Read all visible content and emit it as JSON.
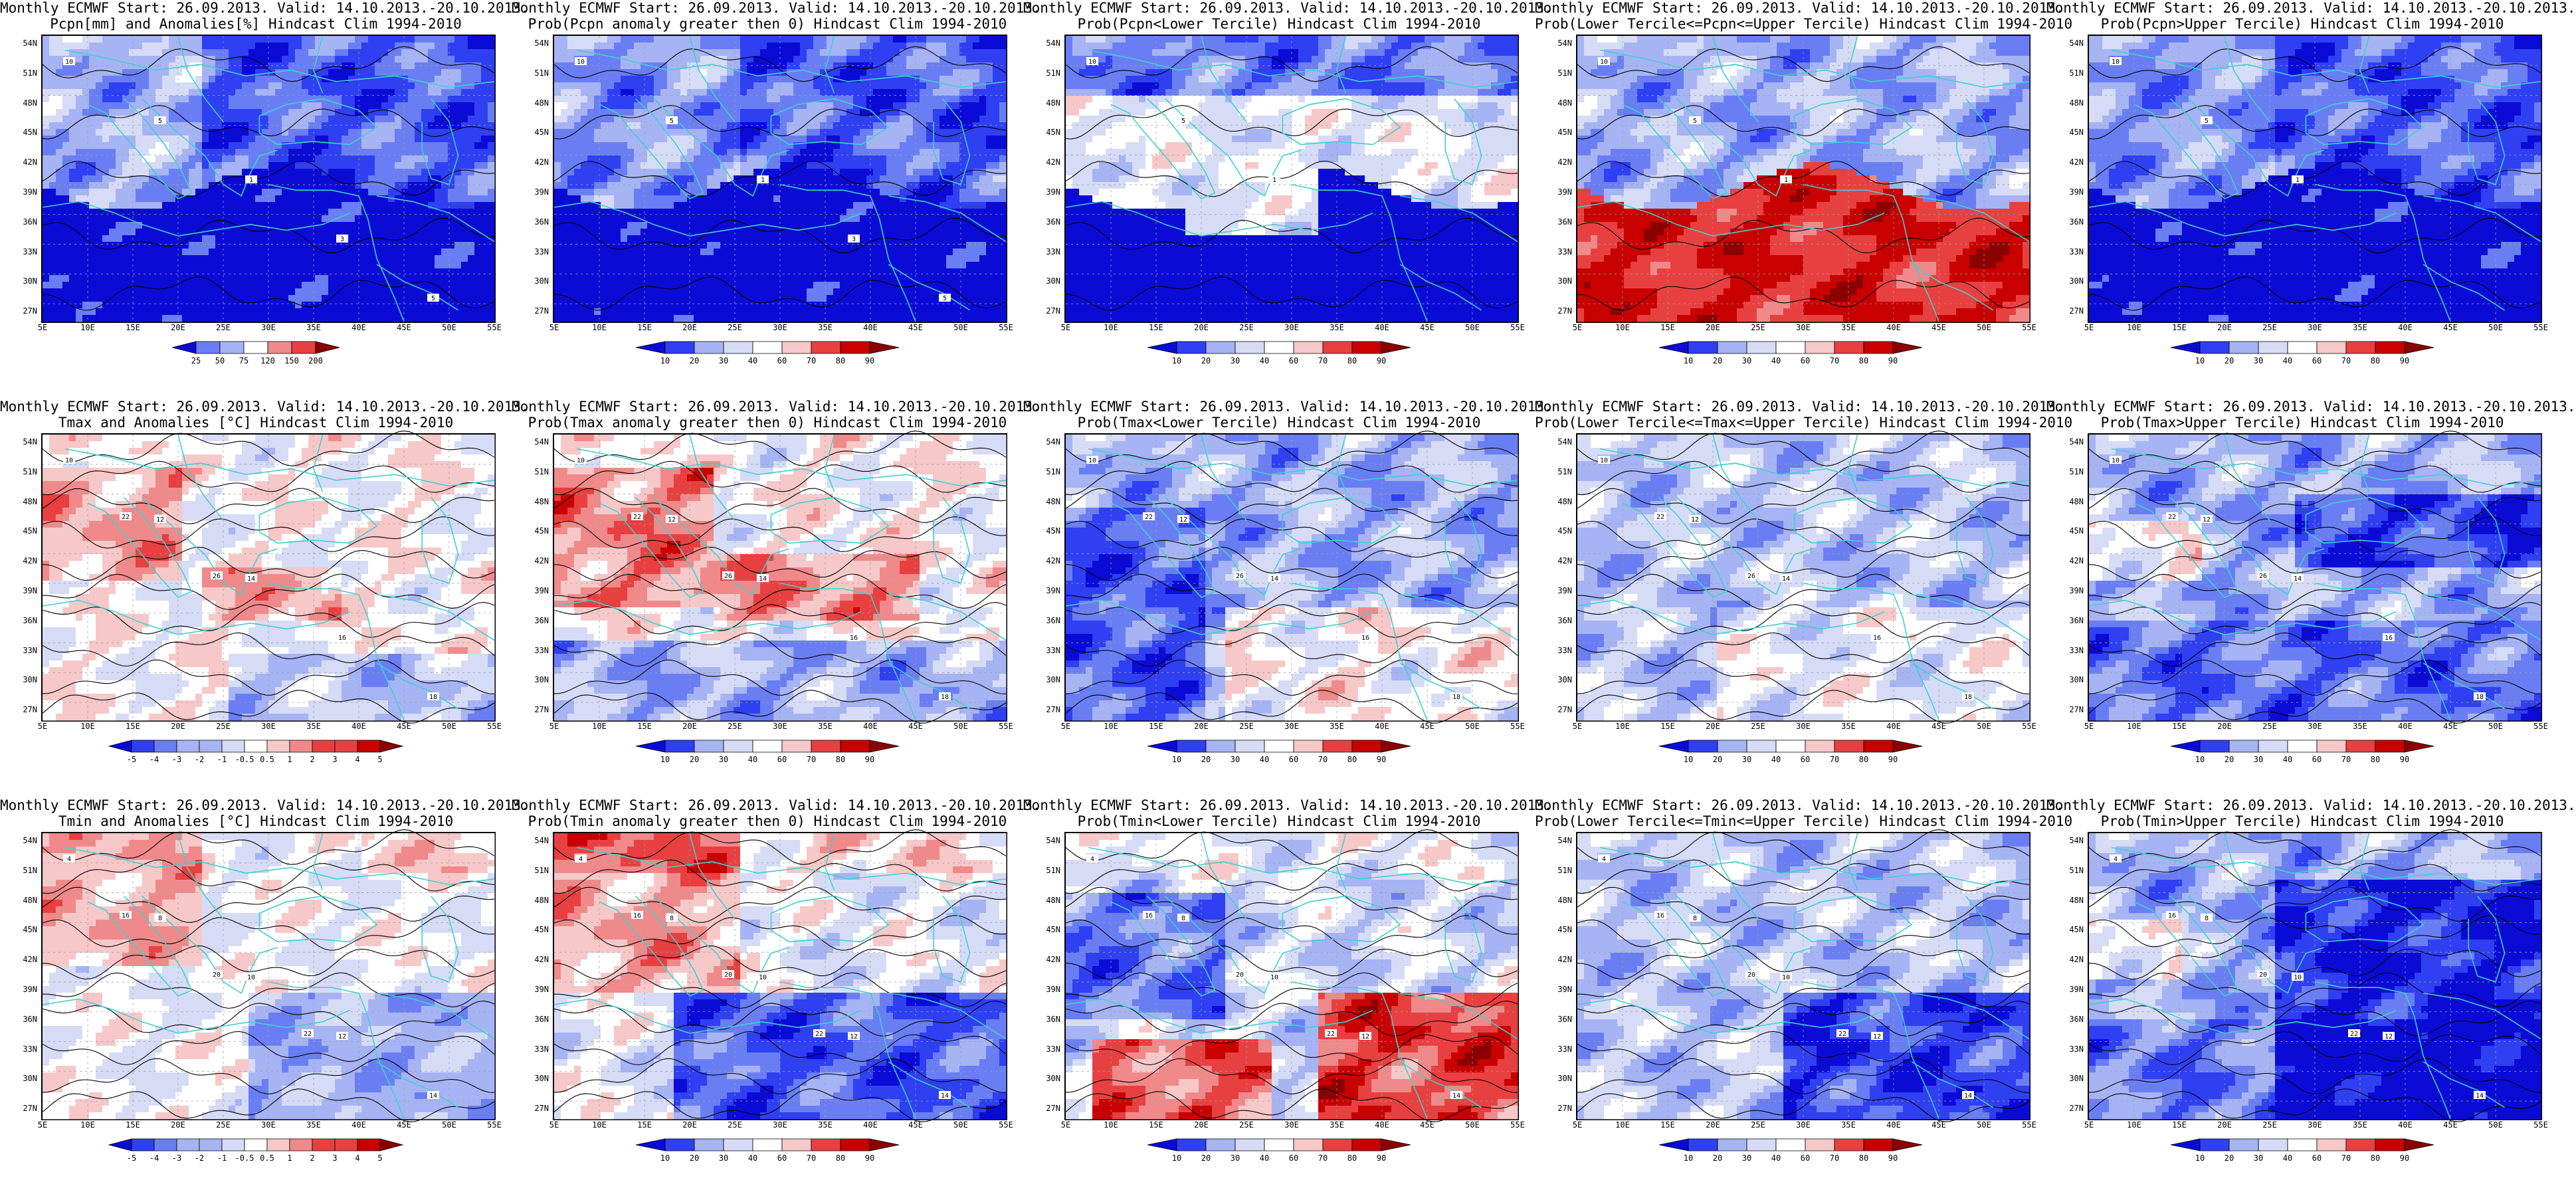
{
  "lat_ticks": [
    "54N",
    "51N",
    "48N",
    "45N",
    "42N",
    "39N",
    "36N",
    "33N",
    "30N",
    "27N"
  ],
  "lon_ticks": [
    "5E",
    "10E",
    "15E",
    "20E",
    "25E",
    "30E",
    "35E",
    "40E",
    "45E",
    "50E",
    "55E"
  ],
  "colors": {
    "prob": [
      "#0b0bd6",
      "#2f3ff2",
      "#6a7ef4",
      "#a6b4f4",
      "#d6dcf6",
      "#ffffff",
      "#f7c8c8",
      "#f08a8a",
      "#e84040",
      "#c80000",
      "#8b0000"
    ],
    "anom": [
      "#0b0bd6",
      "#2f3ff2",
      "#6a7ef4",
      "#a6b4f4",
      "#d6dcf6",
      "#ffffff",
      "#f7c8c8",
      "#f08a8a",
      "#e84040",
      "#c80000",
      "#8b0000"
    ],
    "coast": "#3fd0d0",
    "contour": "#000000"
  },
  "panels": [
    {
      "id": "p1",
      "line1": "Monthly ECMWF Start: 26.09.2013. Valid: 14.10.2013.-20.10.2013.",
      "line2": "Pcpn[mm] and Anomalies[%] Hindcast Clim 1994-2010",
      "scale": "pcp",
      "pattern": "pcp_anom",
      "labels": [
        "25",
        "50",
        "75",
        "120",
        "150",
        "200"
      ],
      "contour_labels": [
        "10",
        "5",
        "1",
        "3",
        "5"
      ]
    },
    {
      "id": "p2",
      "line1": "Monthly ECMWF Start: 26.09.2013. Valid: 14.10.2013.-20.10.2013.",
      "line2": "Prob(Pcpn anomaly greater then 0) Hindcast Clim 1994-2010",
      "scale": "prob",
      "pattern": "pcp_prob",
      "labels": [
        "10",
        "20",
        "30",
        "40",
        "60",
        "70",
        "80",
        "90"
      ],
      "contour_labels": [
        "10",
        "5",
        "1",
        "3",
        "5"
      ]
    },
    {
      "id": "p3",
      "line1": "Monthly ECMWF Start: 26.09.2013. Valid: 14.10.2013.-20.10.2013.",
      "line2": "Prob(Pcpn<Lower Tercile) Hindcast Clim 1994-2010",
      "scale": "prob",
      "pattern": "pcp_lower",
      "labels": [
        "10",
        "20",
        "30",
        "40",
        "60",
        "70",
        "80",
        "90"
      ],
      "contour_labels": [
        "10",
        "5",
        "1"
      ]
    },
    {
      "id": "p4",
      "line1": "Monthly ECMWF Start: 26.09.2013. Valid: 14.10.2013.-20.10.2013.",
      "line2": "Prob(Lower Tercile<=Pcpn<=Upper Tercile) Hindcast Clim 1994-2010",
      "scale": "prob",
      "pattern": "pcp_mid",
      "labels": [
        "10",
        "20",
        "30",
        "40",
        "60",
        "70",
        "80",
        "90"
      ],
      "contour_labels": [
        "10",
        "5",
        "1"
      ]
    },
    {
      "id": "p5",
      "line1": "Monthly ECMWF Start: 26.09.2013. Valid: 14.10.2013.-20.10.2013.",
      "line2": "Prob(Pcpn>Upper Tercile) Hindcast Clim 1994-2010",
      "scale": "prob",
      "pattern": "pcp_upper",
      "labels": [
        "10",
        "20",
        "30",
        "40",
        "60",
        "70",
        "80",
        "90"
      ],
      "contour_labels": [
        "10",
        "5",
        "1"
      ]
    },
    {
      "id": "p6",
      "line1": "Monthly ECMWF Start: 26.09.2013. Valid: 14.10.2013.-20.10.2013.",
      "line2": "Tmax and Anomalies [°C] Hindcast Clim 1994-2010",
      "scale": "anom",
      "pattern": "tmax_anom",
      "labels": [
        "-5",
        "-4",
        "-3",
        "-2",
        "-1",
        "-0.5",
        "0.5",
        "1",
        "2",
        "3",
        "4",
        "5"
      ],
      "contour_labels": [
        "10",
        "12",
        "14",
        "16",
        "18",
        "22",
        "26"
      ]
    },
    {
      "id": "p7",
      "line1": "Monthly ECMWF Start: 26.09.2013. Valid: 14.10.2013.-20.10.2013.",
      "line2": "Prob(Tmax anomaly greater then 0) Hindcast Clim 1994-2010",
      "scale": "prob",
      "pattern": "tmax_prob",
      "labels": [
        "10",
        "20",
        "30",
        "40",
        "60",
        "70",
        "80",
        "90"
      ],
      "contour_labels": [
        "10",
        "12",
        "14",
        "16",
        "18",
        "22",
        "26"
      ]
    },
    {
      "id": "p8",
      "line1": "Monthly ECMWF Start: 26.09.2013. Valid: 14.10.2013.-20.10.2013.",
      "line2": "Prob(Tmax<Lower Tercile) Hindcast Clim 1994-2010",
      "scale": "prob",
      "pattern": "tmax_lower",
      "labels": [
        "10",
        "20",
        "30",
        "40",
        "60",
        "70",
        "80",
        "90"
      ],
      "contour_labels": [
        "10",
        "12",
        "14",
        "16",
        "18",
        "22",
        "26"
      ]
    },
    {
      "id": "p9",
      "line1": "Monthly ECMWF Start: 26.09.2013. Valid: 14.10.2013.-20.10.2013.",
      "line2": "Prob(Lower Tercile<=Tmax<=Upper Tercile) Hindcast Clim 1994-2010",
      "scale": "prob",
      "pattern": "tmax_mid",
      "labels": [
        "10",
        "20",
        "30",
        "40",
        "60",
        "70",
        "80",
        "90"
      ],
      "contour_labels": [
        "10",
        "12",
        "14",
        "16",
        "18",
        "22",
        "26"
      ]
    },
    {
      "id": "p10",
      "line1": "Monthly ECMWF Start: 26.09.2013. Valid: 14.10.2013.-20.10.2013.",
      "line2": "Prob(Tmax>Upper Tercile) Hindcast Clim 1994-2010",
      "scale": "prob",
      "pattern": "tmax_upper",
      "labels": [
        "10",
        "20",
        "30",
        "40",
        "60",
        "70",
        "80",
        "90"
      ],
      "contour_labels": [
        "10",
        "12",
        "14",
        "16",
        "18",
        "22",
        "26"
      ]
    },
    {
      "id": "p11",
      "line1": "Monthly ECMWF Start: 26.09.2013. Valid: 14.10.2013.-20.10.2013.",
      "line2": "Tmin and Anomalies [°C] Hindcast Clim 1994-2010",
      "scale": "anom",
      "pattern": "tmin_anom",
      "labels": [
        "-5",
        "-4",
        "-3",
        "-2",
        "-1",
        "-0.5",
        "0.5",
        "1",
        "2",
        "3",
        "4",
        "5"
      ],
      "contour_labels": [
        "4",
        "8",
        "10",
        "12",
        "14",
        "16",
        "20",
        "22"
      ]
    },
    {
      "id": "p12",
      "line1": "Monthly ECMWF Start: 26.09.2013. Valid: 14.10.2013.-20.10.2013.",
      "line2": "Prob(Tmin anomaly greater then 0) Hindcast Clim 1994-2010",
      "scale": "prob",
      "pattern": "tmin_prob",
      "labels": [
        "10",
        "20",
        "30",
        "40",
        "60",
        "70",
        "80",
        "90"
      ],
      "contour_labels": [
        "4",
        "8",
        "10",
        "12",
        "14",
        "16",
        "20",
        "22"
      ]
    },
    {
      "id": "p13",
      "line1": "Monthly ECMWF Start: 26.09.2013. Valid: 14.10.2013.-20.10.2013.",
      "line2": "Prob(Tmin<Lower Tercile) Hindcast Clim 1994-2010",
      "scale": "prob",
      "pattern": "tmin_lower",
      "labels": [
        "10",
        "20",
        "30",
        "40",
        "60",
        "70",
        "80",
        "90"
      ],
      "contour_labels": [
        "4",
        "8",
        "10",
        "12",
        "14",
        "16",
        "20",
        "22"
      ]
    },
    {
      "id": "p14",
      "line1": "Monthly ECMWF Start: 26.09.2013. Valid: 14.10.2013.-20.10.2013.",
      "line2": "Prob(Lower Tercile<=Tmin<=Upper Tercile) Hindcast Clim 1994-2010",
      "scale": "prob",
      "pattern": "tmin_mid",
      "labels": [
        "10",
        "20",
        "30",
        "40",
        "60",
        "70",
        "80",
        "90"
      ],
      "contour_labels": [
        "4",
        "8",
        "10",
        "12",
        "14",
        "16",
        "20",
        "22"
      ]
    },
    {
      "id": "p15",
      "line1": "Monthly ECMWF Start: 26.09.2013. Valid: 14.10.2013.-20.10.2013.",
      "line2": "Prob(Tmin>Upper Tercile) Hindcast Clim 1994-2010",
      "scale": "prob",
      "pattern": "tmin_upper",
      "labels": [
        "10",
        "20",
        "30",
        "40",
        "60",
        "70",
        "80",
        "90"
      ],
      "contour_labels": [
        "4",
        "8",
        "10",
        "12",
        "14",
        "16",
        "20",
        "22"
      ]
    }
  ]
}
